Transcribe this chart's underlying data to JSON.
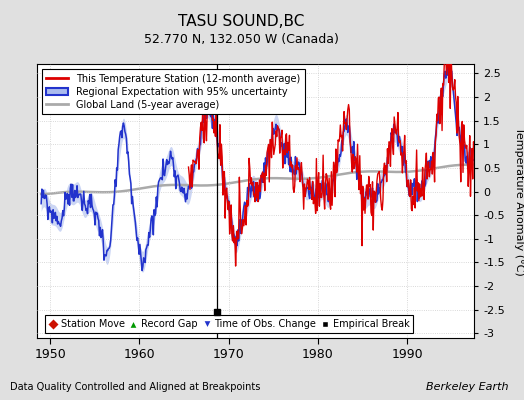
{
  "title": "TASU SOUND,BC",
  "subtitle": "52.770 N, 132.050 W (Canada)",
  "ylabel": "Temperature Anomaly (°C)",
  "xlabel_note": "Data Quality Controlled and Aligned at Breakpoints",
  "credit": "Berkeley Earth",
  "xlim": [
    1948.5,
    1997.5
  ],
  "ylim": [
    -3.1,
    2.7
  ],
  "yticks": [
    -3,
    -2.5,
    -2,
    -1.5,
    -1,
    -0.5,
    0,
    0.5,
    1,
    1.5,
    2,
    2.5
  ],
  "xticks": [
    1950,
    1960,
    1970,
    1980,
    1990
  ],
  "empirical_break_year": 1968.7,
  "bg_color": "#e0e0e0",
  "plot_bg_color": "#ffffff",
  "station_color": "#dd0000",
  "regional_color": "#2233cc",
  "regional_fill_color": "#aabbee",
  "global_color": "#aaaaaa",
  "grid_color": "#cccccc",
  "station_start_year": 1965.5
}
